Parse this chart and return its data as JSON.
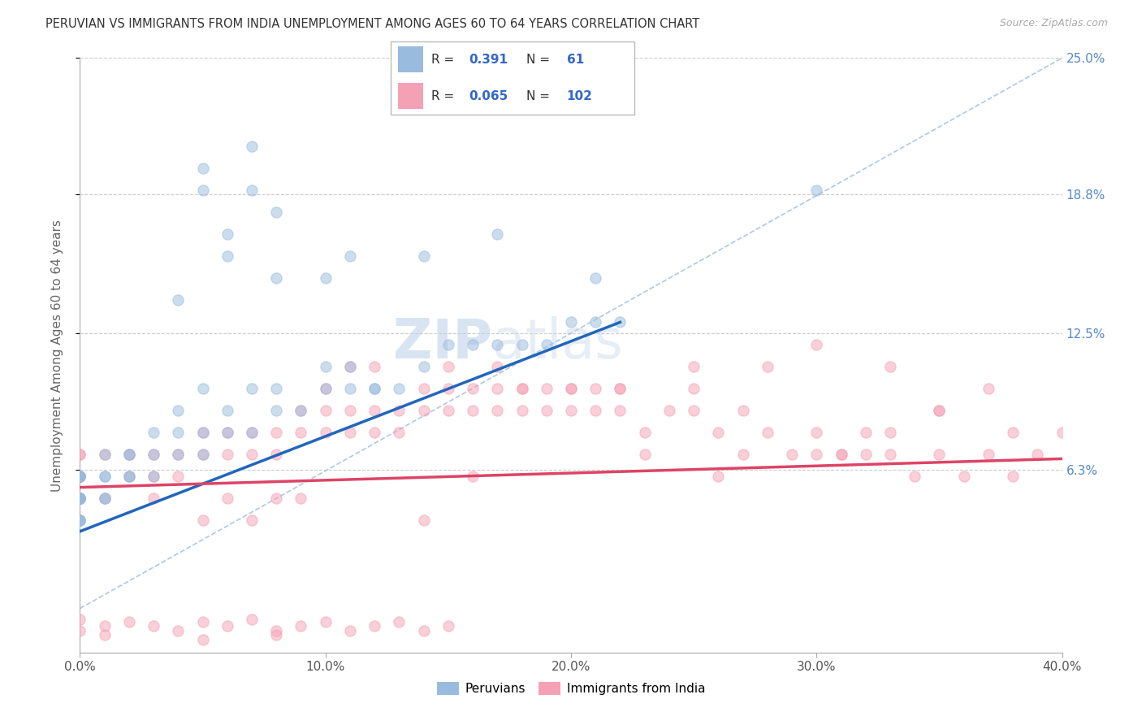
{
  "title": "PERUVIAN VS IMMIGRANTS FROM INDIA UNEMPLOYMENT AMONG AGES 60 TO 64 YEARS CORRELATION CHART",
  "source": "Source: ZipAtlas.com",
  "ylabel": "Unemployment Among Ages 60 to 64 years",
  "xlim": [
    0,
    0.4
  ],
  "ylim": [
    -0.02,
    0.25
  ],
  "plot_ylim": [
    0,
    0.25
  ],
  "ytick_labels": [
    "6.3%",
    "12.5%",
    "18.8%",
    "25.0%"
  ],
  "ytick_values": [
    0.063,
    0.125,
    0.188,
    0.25
  ],
  "xtick_labels": [
    "0.0%",
    "10.0%",
    "20.0%",
    "30.0%",
    "40.0%"
  ],
  "xtick_values": [
    0,
    0.1,
    0.2,
    0.3,
    0.4
  ],
  "peruvian_color": "#99bbdd",
  "india_color": "#f4a0b5",
  "peruvian_line_color": "#2266bb",
  "india_line_color": "#dd4466",
  "R_peruvian": 0.391,
  "N_peruvian": 61,
  "R_india": 0.065,
  "N_india": 102,
  "grid_color": "#cccccc",
  "ref_line_color": "#99bbdd",
  "watermark_color": "#d0e4f0"
}
